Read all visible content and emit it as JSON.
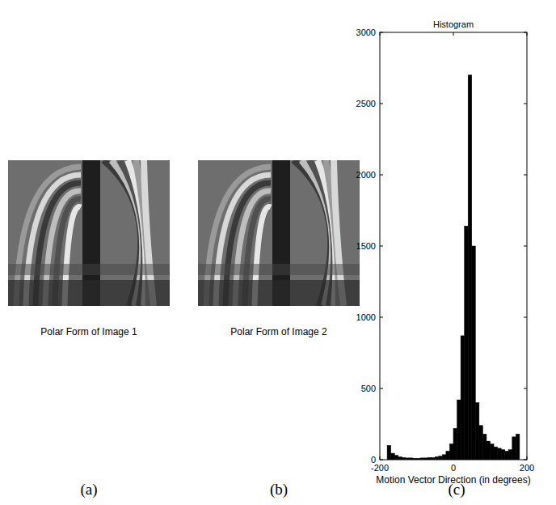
{
  "panels": [
    {
      "caption": "Polar Form of Image 1",
      "letter": "(a)"
    },
    {
      "caption": "Polar Form of Image 2",
      "letter": "(b)"
    }
  ],
  "chart_letter": "(c)",
  "chart_data": {
    "type": "histogram",
    "title": "Histogram",
    "x_label": "Motion Vector Direction (in degrees)",
    "bins": [
      -180,
      -170,
      -160,
      -150,
      -140,
      -130,
      -120,
      -110,
      -100,
      -90,
      -80,
      -70,
      -60,
      -50,
      -40,
      -30,
      -20,
      -10,
      0,
      10,
      20,
      30,
      40,
      50,
      60,
      70,
      80,
      90,
      100,
      110,
      120,
      130,
      140,
      150,
      160,
      170,
      180
    ],
    "counts": [
      100,
      45,
      30,
      20,
      15,
      12,
      12,
      10,
      10,
      12,
      12,
      15,
      15,
      20,
      25,
      35,
      60,
      110,
      220,
      420,
      870,
      1640,
      2700,
      1500,
      400,
      240,
      180,
      130,
      110,
      90,
      80,
      70,
      60,
      70,
      160,
      180
    ],
    "color": "#000000",
    "xlim": [
      -200,
      200
    ],
    "xticks": [
      -200,
      0,
      200
    ],
    "ylim": [
      0,
      3000
    ],
    "yticks": [
      0,
      500,
      1000,
      1500,
      2000,
      2500,
      3000
    ],
    "grid": false
  }
}
